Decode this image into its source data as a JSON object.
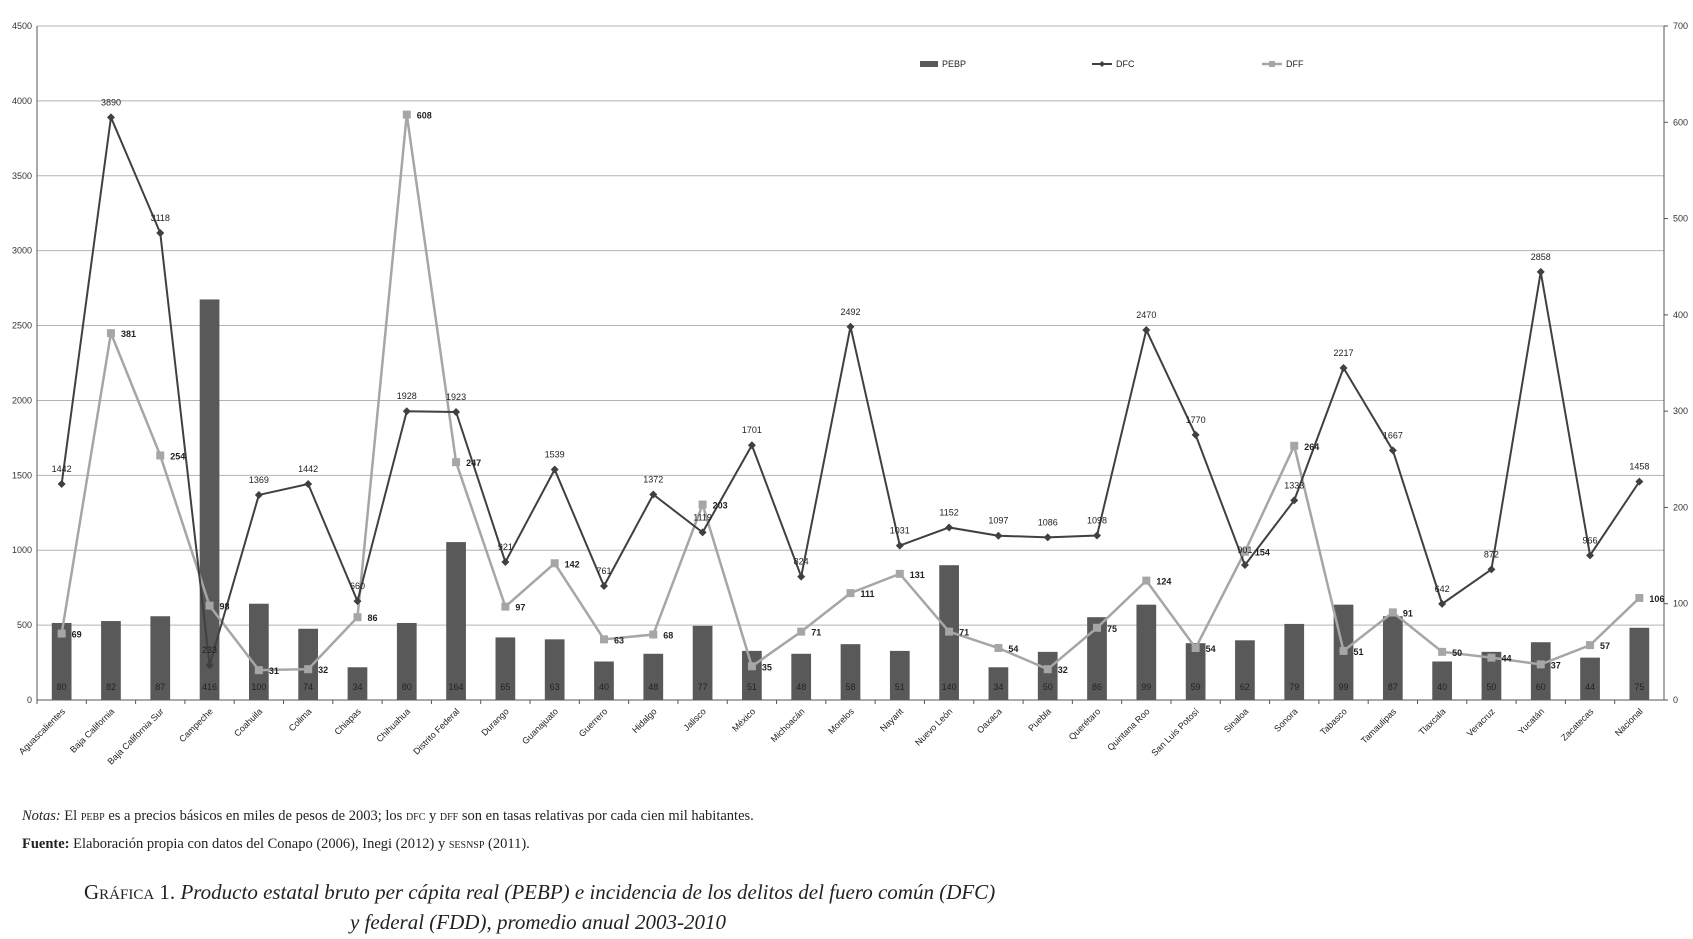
{
  "chart_data": {
    "type": "bar",
    "title": "Producto estatal bruto per cápita real (PEBP) e incidencia de los delitos del fuero común (DFC) y federal (FDD), promedio anual 2003-2010",
    "categories": [
      "Aguascalientes",
      "Baja California",
      "Baja California Sur",
      "Campeche",
      "Coahuila",
      "Colima",
      "Chiapas",
      "Chihuahua",
      "Distrito Federal",
      "Durango",
      "Guanajuato",
      "Guerrero",
      "Hidalgo",
      "Jalisco",
      "México",
      "Michoacán",
      "Morelos",
      "Nayarit",
      "Nuevo León",
      "Oaxaca",
      "Puebla",
      "Querétaro",
      "Quintana Roo",
      "San Luis Potosí",
      "Sinaloa",
      "Sonora",
      "Tabasco",
      "Tamaulipas",
      "Tlaxcala",
      "Veracruz",
      "Yucatán",
      "Zacatecas",
      "Nacional"
    ],
    "left_axis": {
      "min": 0,
      "max": 4500,
      "step": 500,
      "ticks": [
        "0",
        "500",
        "1000",
        "1500",
        "2000",
        "2500",
        "3000",
        "3500",
        "4000",
        "4500"
      ]
    },
    "right_axis": {
      "min": 0,
      "max": 700,
      "step": 100,
      "ticks": [
        "0",
        "100",
        "200",
        "300",
        "400",
        "500",
        "600",
        "700"
      ]
    },
    "series": [
      {
        "name": "PEBP",
        "type": "bar",
        "axis": "right",
        "values": [
          80,
          82,
          87,
          416,
          100,
          74,
          34,
          80,
          164,
          65,
          63,
          40,
          48,
          77,
          51,
          48,
          58,
          51,
          140,
          34,
          50,
          86,
          99,
          59,
          62,
          79,
          99,
          87,
          40,
          50,
          60,
          44,
          75
        ],
        "labels": [
          "80",
          "82",
          "87",
          "416",
          "100",
          "74",
          "34",
          "80",
          "164",
          "65",
          "63",
          "40",
          "48",
          "77",
          "51",
          "48",
          "58",
          "51",
          "140",
          "34",
          "50",
          "86",
          "99",
          "59",
          "62",
          "79",
          "99",
          "87",
          "40",
          "50",
          "60",
          "44",
          "75"
        ]
      },
      {
        "name": "DFC",
        "type": "line",
        "axis": "left",
        "marker": "diamond",
        "values": [
          1442,
          3890,
          3118,
          233,
          1369,
          1442,
          660,
          1928,
          1923,
          921,
          1539,
          761,
          1372,
          1119,
          1701,
          824,
          2492,
          1031,
          1152,
          1097,
          1086,
          1098,
          2470,
          1770,
          901,
          1333,
          2217,
          1667,
          642,
          872,
          2858,
          966,
          1458
        ],
        "labels": [
          "1442",
          "3890",
          "3118",
          "233",
          "1369",
          "1442",
          "660",
          "1928",
          "1923",
          "921",
          "1539",
          "761",
          "1372",
          "1119",
          "1701",
          "824",
          "2492",
          "1031",
          "1152",
          "1097",
          "1086",
          "1098",
          "2470",
          "1770",
          "901",
          "1333",
          "2217",
          "1667",
          "642",
          "872",
          "2858",
          "966",
          "1458"
        ]
      },
      {
        "name": "DFF",
        "type": "line",
        "axis": "right",
        "marker": "square",
        "values": [
          69,
          381,
          254,
          98,
          31,
          32,
          86,
          608,
          247,
          97,
          142,
          63,
          68,
          203,
          35,
          71,
          111,
          131,
          71,
          54,
          32,
          75,
          124,
          54,
          154,
          264,
          51,
          91,
          50,
          44,
          37,
          57,
          106
        ],
        "labels": [
          "69",
          "381",
          "254",
          "98",
          "31",
          "32",
          "86",
          "608",
          "247",
          "97",
          "142",
          "63",
          "68",
          "203",
          "35",
          "71",
          "111",
          "131",
          "71",
          "54",
          "32",
          "75",
          "124",
          "54",
          "154",
          "264",
          "51",
          "91",
          "50",
          "44",
          "37",
          "57",
          "106"
        ]
      }
    ],
    "colors": {
      "bar": "#595959",
      "dfc": "#404040",
      "dff": "#a6a6a6",
      "grid": "#b3b3b3"
    },
    "legend_position": "top-right",
    "grid": true
  },
  "notes": {
    "label": "Notas:",
    "text_a": " El ",
    "abbr_pebp": "PEBP",
    "text_b": " es a precios básicos en miles de pesos de 2003; los ",
    "abbr_dfc": "DFC",
    "text_c": " y ",
    "abbr_dff": "DFF",
    "text_d": " son en tasas relativas por cada cien mil habitantes."
  },
  "source": {
    "label": "Fuente:",
    "text_a": " Elaboración propia con datos del Conapo (2006), Inegi (2012) y ",
    "abbr": "SESNSP",
    "text_b": " (2011)."
  },
  "caption": {
    "prefix": "Gráfica 1.",
    "line1": "Producto estatal bruto per cápita real (PEBP) e incidencia de los delitos del fuero común (DFC)",
    "line2": "y federal (FDD), promedio anual 2003-2010"
  }
}
